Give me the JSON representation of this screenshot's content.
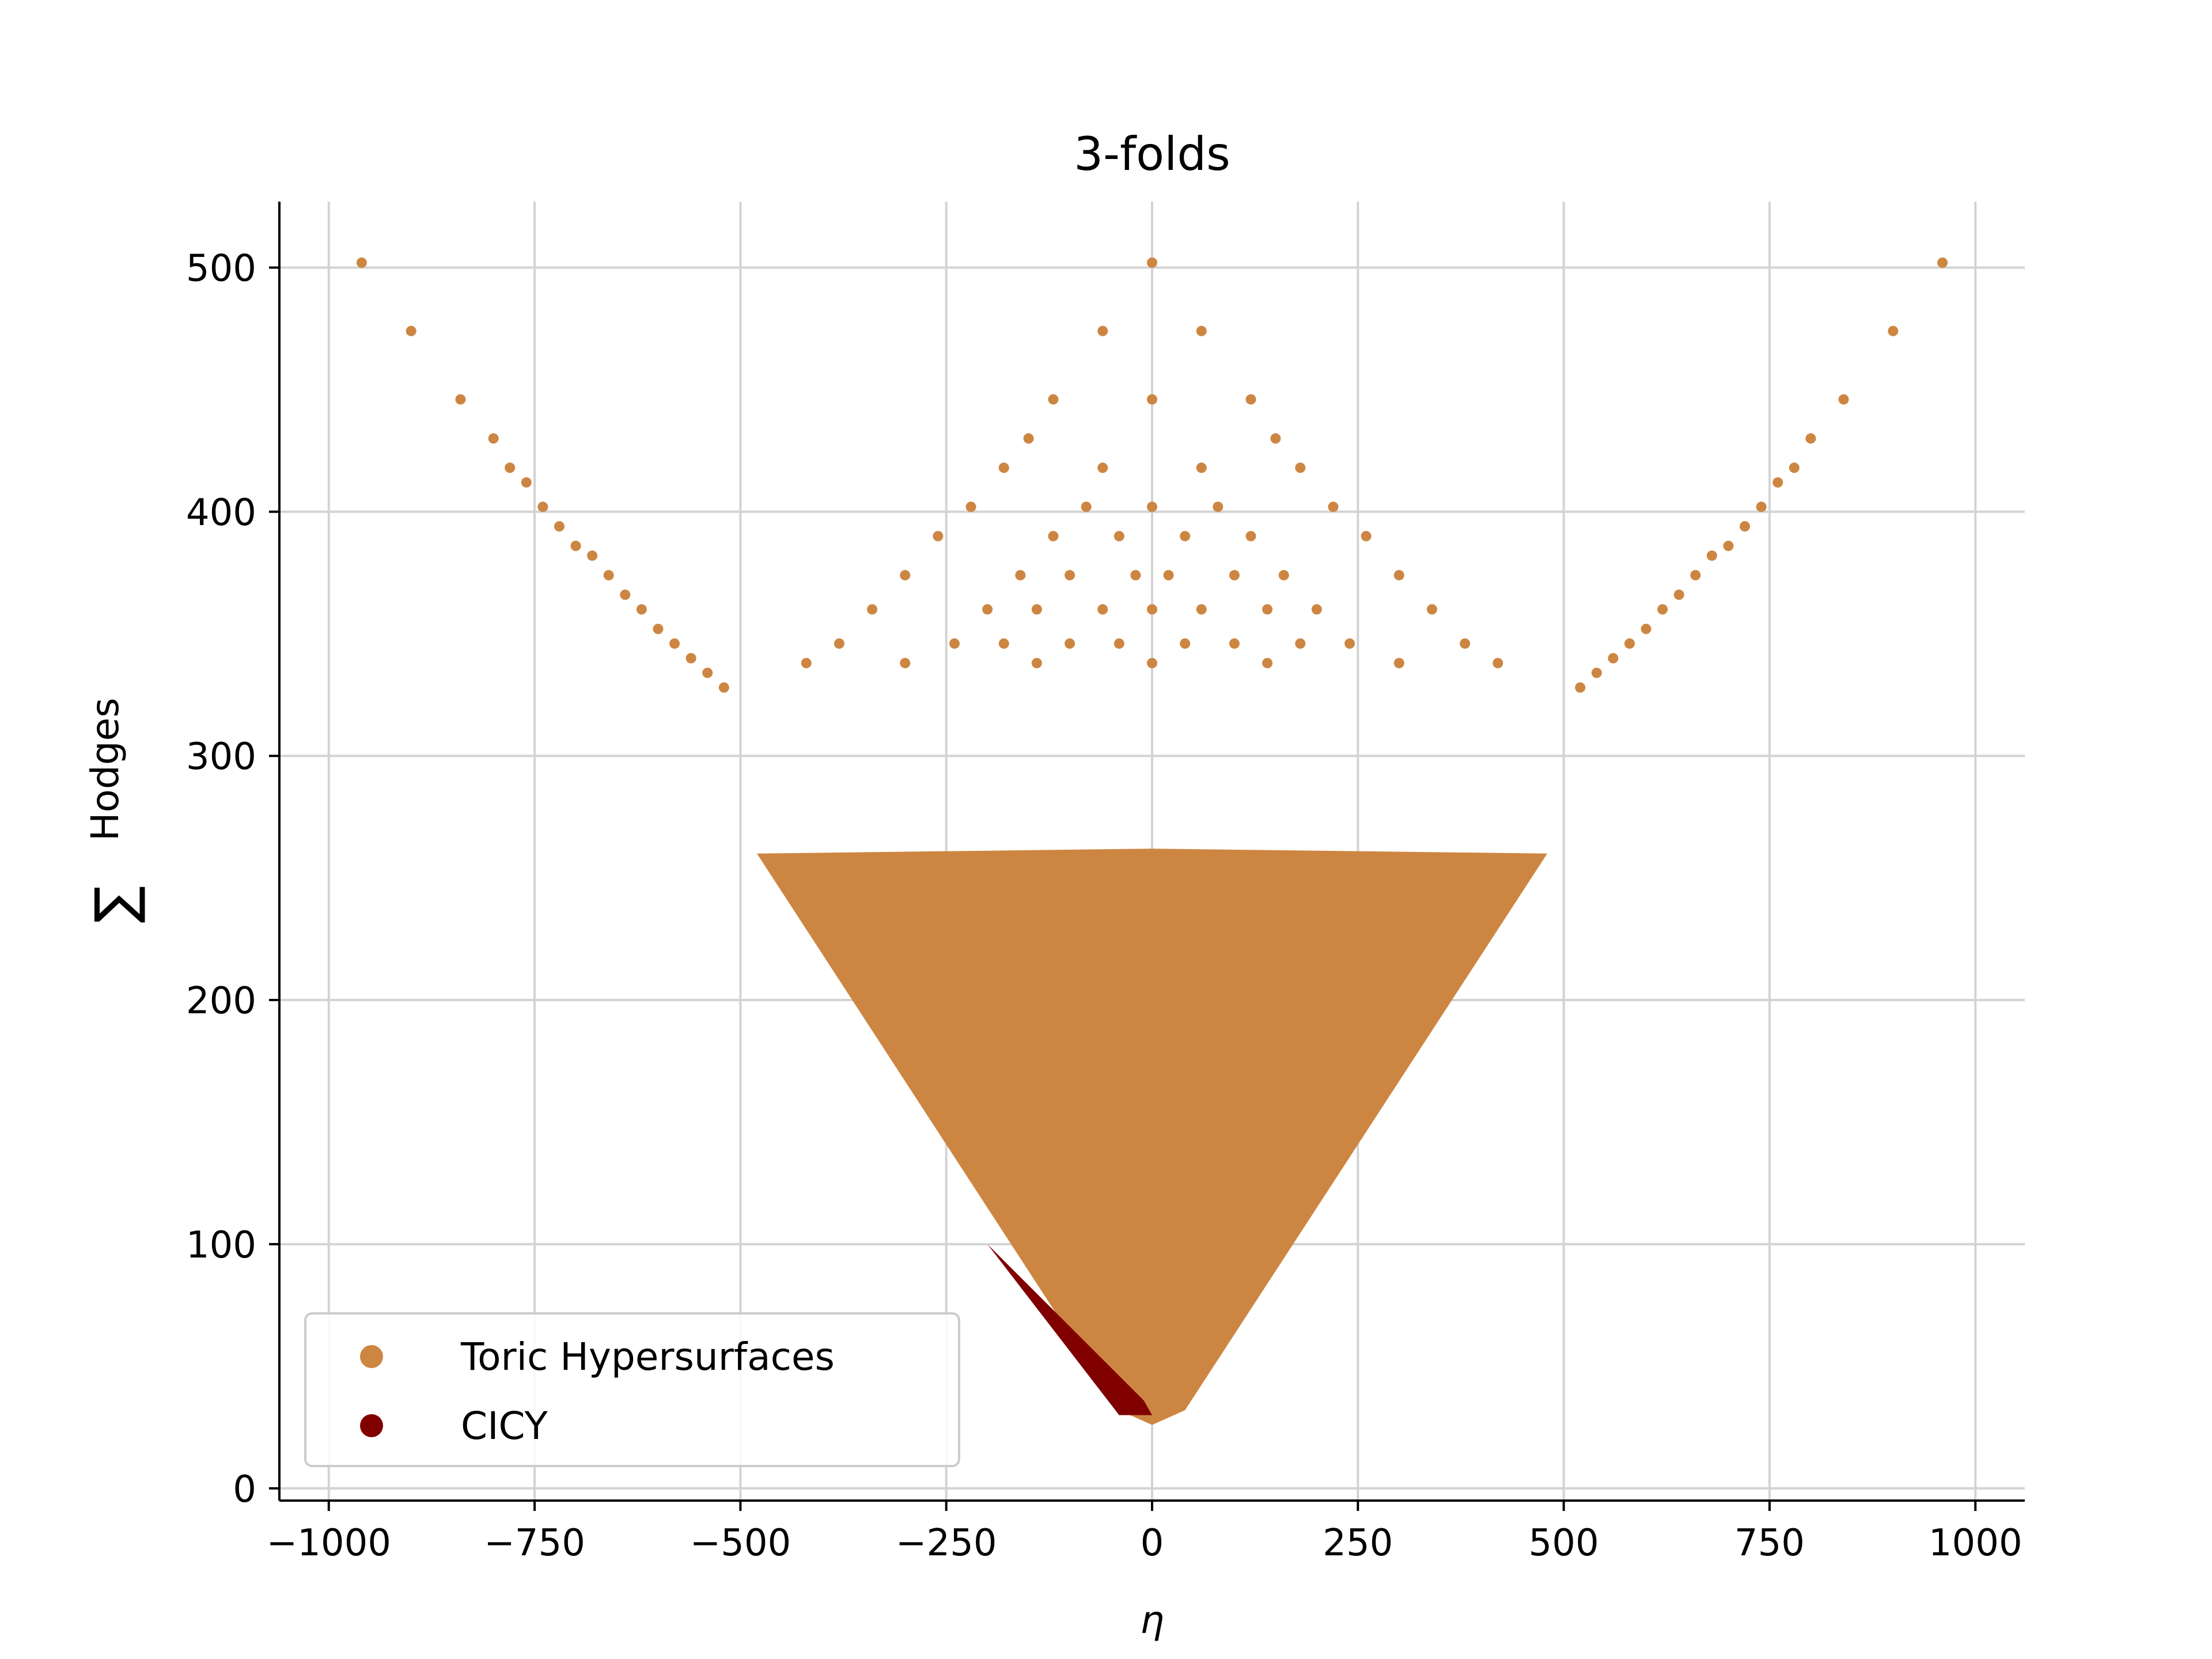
{
  "chart_data": {
    "type": "scatter",
    "title": "3-folds",
    "xlabel": "η",
    "ylabel_symbol": "∑",
    "ylabel_text": "Hodges",
    "xlim": [
      -1060,
      1060
    ],
    "ylim": [
      -5,
      527
    ],
    "xticks": [
      -1000,
      -750,
      -500,
      -250,
      0,
      250,
      500,
      750,
      1000
    ],
    "xtick_labels": [
      "−1000",
      "−750",
      "−500",
      "−250",
      "0",
      "250",
      "500",
      "750",
      "1000"
    ],
    "yticks": [
      0,
      100,
      200,
      300,
      400,
      500
    ],
    "ytick_labels": [
      "0",
      "100",
      "200",
      "300",
      "400",
      "500"
    ],
    "grid": true,
    "legend_position": "lower-left",
    "series": [
      {
        "name": "Toric Hypersurfaces",
        "color": "#cd8642",
        "region": {
          "description_points": [
            [
              -480,
              260
            ],
            [
              -40,
              32
            ],
            [
              0,
              26
            ],
            [
              40,
              32
            ],
            [
              480,
              260
            ],
            [
              0,
              262
            ]
          ]
        },
        "points": [
          [
            -960,
            502
          ],
          [
            -900,
            474
          ],
          [
            -840,
            446
          ],
          [
            -800,
            430
          ],
          [
            -780,
            418
          ],
          [
            -760,
            412
          ],
          [
            -740,
            402
          ],
          [
            -720,
            394
          ],
          [
            -700,
            386
          ],
          [
            -680,
            382
          ],
          [
            -660,
            374
          ],
          [
            -640,
            366
          ],
          [
            -620,
            360
          ],
          [
            -600,
            352
          ],
          [
            -580,
            346
          ],
          [
            -560,
            340
          ],
          [
            -540,
            334
          ],
          [
            -520,
            328
          ],
          [
            960,
            502
          ],
          [
            900,
            474
          ],
          [
            840,
            446
          ],
          [
            800,
            430
          ],
          [
            780,
            418
          ],
          [
            760,
            412
          ],
          [
            740,
            402
          ],
          [
            720,
            394
          ],
          [
            700,
            386
          ],
          [
            680,
            382
          ],
          [
            660,
            374
          ],
          [
            640,
            366
          ],
          [
            620,
            360
          ],
          [
            600,
            352
          ],
          [
            580,
            346
          ],
          [
            560,
            340
          ],
          [
            540,
            334
          ],
          [
            520,
            328
          ],
          [
            0,
            502
          ],
          [
            -60,
            474
          ],
          [
            60,
            474
          ],
          [
            -120,
            446
          ],
          [
            0,
            446
          ],
          [
            120,
            446
          ],
          [
            -150,
            430
          ],
          [
            150,
            430
          ],
          [
            -180,
            418
          ],
          [
            -60,
            418
          ],
          [
            60,
            418
          ],
          [
            180,
            418
          ],
          [
            -220,
            402
          ],
          [
            -80,
            402
          ],
          [
            0,
            402
          ],
          [
            80,
            402
          ],
          [
            220,
            402
          ],
          [
            -260,
            390
          ],
          [
            -120,
            390
          ],
          [
            -40,
            390
          ],
          [
            40,
            390
          ],
          [
            120,
            390
          ],
          [
            260,
            390
          ],
          [
            -300,
            374
          ],
          [
            -160,
            374
          ],
          [
            -100,
            374
          ],
          [
            -20,
            374
          ],
          [
            20,
            374
          ],
          [
            100,
            374
          ],
          [
            160,
            374
          ],
          [
            300,
            374
          ],
          [
            -340,
            360
          ],
          [
            -200,
            360
          ],
          [
            -140,
            360
          ],
          [
            -60,
            360
          ],
          [
            0,
            360
          ],
          [
            60,
            360
          ],
          [
            140,
            360
          ],
          [
            200,
            360
          ],
          [
            340,
            360
          ],
          [
            -380,
            346
          ],
          [
            -240,
            346
          ],
          [
            -180,
            346
          ],
          [
            -100,
            346
          ],
          [
            -40,
            346
          ],
          [
            40,
            346
          ],
          [
            100,
            346
          ],
          [
            180,
            346
          ],
          [
            240,
            346
          ],
          [
            380,
            346
          ],
          [
            -420,
            338
          ],
          [
            -300,
            338
          ],
          [
            -140,
            338
          ],
          [
            0,
            338
          ],
          [
            140,
            338
          ],
          [
            300,
            338
          ],
          [
            420,
            338
          ]
        ]
      },
      {
        "name": "CICY",
        "color": "#800000",
        "region": {
          "description_points": [
            [
              -200,
              100
            ],
            [
              -40,
              30
            ],
            [
              0,
              30
            ],
            [
              -10,
              36
            ]
          ]
        }
      }
    ]
  }
}
